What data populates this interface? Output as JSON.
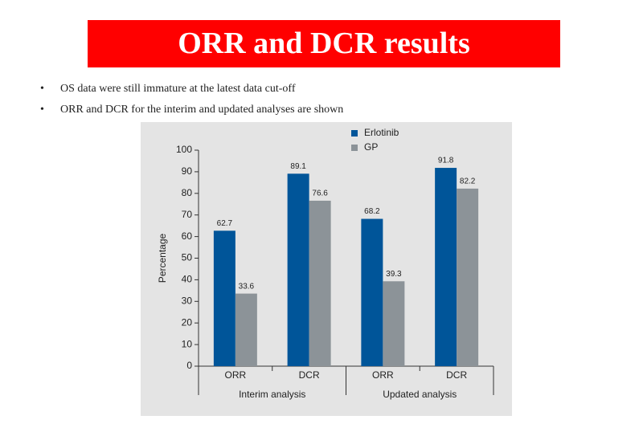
{
  "title": "ORR and DCR results",
  "bullets": [
    "OS data were still immature at the latest data cut-off",
    "ORR and DCR for the interim and updated analyses are shown"
  ],
  "chart_data": {
    "type": "bar",
    "categories": [
      "ORR",
      "DCR",
      "ORR",
      "DCR"
    ],
    "groups": [
      "Interim analysis",
      "Updated analysis"
    ],
    "series": [
      {
        "name": "Erlotinib",
        "color": "#005599",
        "values": [
          62.7,
          89.1,
          68.2,
          91.8
        ]
      },
      {
        "name": "GP",
        "color": "#8c9398",
        "values": [
          33.6,
          76.6,
          39.3,
          82.2
        ]
      }
    ],
    "ylabel": "Percentage",
    "ylim": [
      0,
      100
    ],
    "yticks": [
      0,
      10,
      20,
      30,
      40,
      50,
      60,
      70,
      80,
      90,
      100
    ],
    "show_value_labels": true
  }
}
